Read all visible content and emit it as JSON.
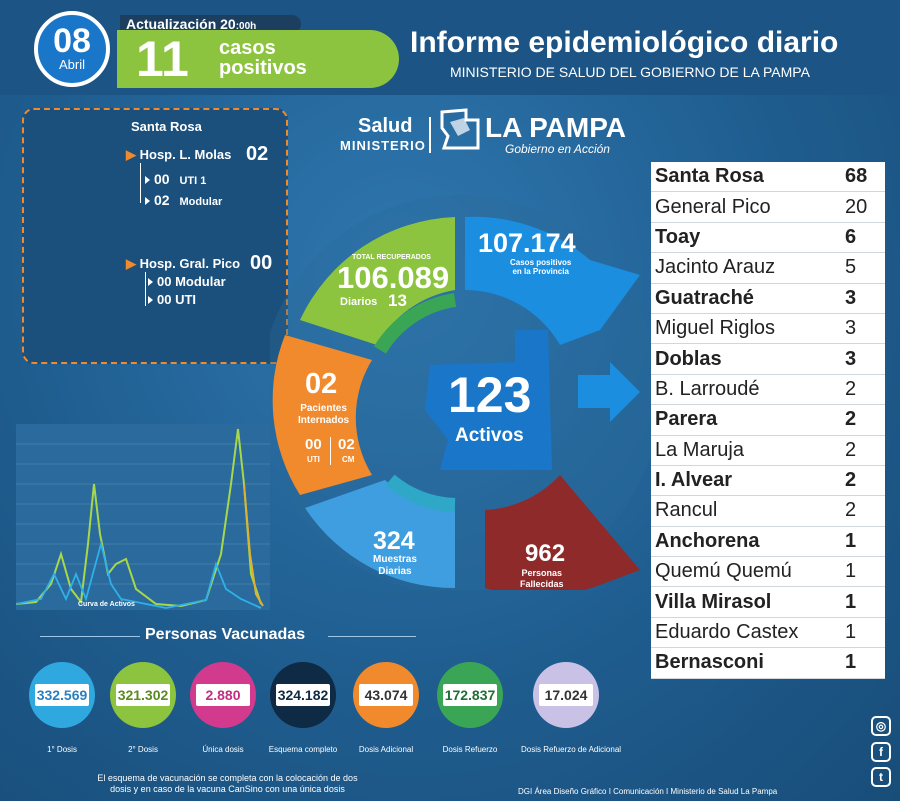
{
  "header": {
    "day": "08",
    "month": "Abril",
    "update_label": "Actualización 20",
    "update_suffix": ":00h",
    "new_cases": "11",
    "new_cases_label_1": "casos",
    "new_cases_label_2": "positivos",
    "title": "Informe epidemiológico diario",
    "subtitle": "MINISTERIO DE SALUD DEL GOBIERNO DE LA PAMPA"
  },
  "hospitals": {
    "city": "Santa Rosa",
    "h1_name": "Hosp. L. Molas",
    "h1_total": "02",
    "h1_uti_val": "00",
    "h1_uti_lbl": "UTI 1",
    "h1_mod_val": "02",
    "h1_mod_lbl": "Modular",
    "h2_name": "Hosp. Gral. Pico",
    "h2_total": "00",
    "h2_mod_val": "00",
    "h2_mod_lbl": "Modular",
    "h2_uti_val": "00",
    "h2_uti_lbl": "UTI"
  },
  "logo": {
    "salud": "Salud",
    "ministerio": "MINISTERIO",
    "la_pampa": "LA PAMPA",
    "gobierno": "Gobierno en Acción"
  },
  "ring": {
    "recovered_label": "TOTAL RECUPERADOS",
    "recovered": "106.089",
    "recovered_daily_label": "Diarios",
    "recovered_daily": "13",
    "positives": "107.174",
    "positives_label_1": "Casos positivos",
    "positives_label_2": "en la Provincia",
    "internados": "02",
    "internados_label_1": "Pacientes",
    "internados_label_2": "Internados",
    "uti_val": "00",
    "uti_lbl": "UTI",
    "cm_val": "02",
    "cm_lbl": "CM",
    "active": "123",
    "active_label": "Activos",
    "samples": "324",
    "samples_label_1": "Muestras",
    "samples_label_2": "Diarias",
    "deaths": "962",
    "deaths_label_1": "Personas",
    "deaths_label_2": "Fallecidas"
  },
  "colors": {
    "green": "#8cc43f",
    "blue": "#1b8ee0",
    "orange": "#f08a2c",
    "lightblue": "#3e9ee0",
    "darkred": "#8e2a2a",
    "teal": "#2fa8c8"
  },
  "localities": [
    {
      "name": "Santa Rosa",
      "count": "68",
      "bold": true
    },
    {
      "name": "General Pico",
      "count": "20",
      "bold": false
    },
    {
      "name": "Toay",
      "count": "6",
      "bold": true
    },
    {
      "name": "Jacinto Arauz",
      "count": "5",
      "bold": false
    },
    {
      "name": "Guatraché",
      "count": "3",
      "bold": true
    },
    {
      "name": "Miguel Riglos",
      "count": "3",
      "bold": false
    },
    {
      "name": "Doblas",
      "count": "3",
      "bold": true
    },
    {
      "name": "B. Larroudé",
      "count": "2",
      "bold": false
    },
    {
      "name": "Parera",
      "count": "2",
      "bold": true
    },
    {
      "name": "La Maruja",
      "count": "2",
      "bold": false
    },
    {
      "name": "I.  Alvear",
      "count": "2",
      "bold": true
    },
    {
      "name": "Rancul",
      "count": "2",
      "bold": false
    },
    {
      "name": "Anchorena",
      "count": "1",
      "bold": true
    },
    {
      "name": "Quemú Quemú",
      "count": "1",
      "bold": false
    },
    {
      "name": "Villa Mirasol",
      "count": "1",
      "bold": true
    },
    {
      "name": "Eduardo Castex",
      "count": "1",
      "bold": false
    },
    {
      "name": "Bernasconi",
      "count": "1",
      "bold": true
    }
  ],
  "chart": {
    "caption": "Curva de Activos"
  },
  "vaccines": {
    "title": "Personas Vacunadas",
    "items": [
      {
        "value": "332.569",
        "label": "1° Dosis",
        "color": "#2fa8e0",
        "text_color": "#2a7fc0"
      },
      {
        "value": "321.302",
        "label": "2° Dosis",
        "color": "#8cc43f",
        "text_color": "#5a8a20"
      },
      {
        "value": "2.880",
        "label": "Única dosis",
        "color": "#d23a8e",
        "text_color": "#c0307e"
      },
      {
        "value": "324.182",
        "label": "Esquema completo",
        "color": "#0e2a44",
        "text_color": "#0e2a44"
      },
      {
        "value": "43.074",
        "label": "Dosis Adicional",
        "color": "#f08a2c",
        "text_color": "#333333"
      },
      {
        "value": "172.837",
        "label": "Dosis Refuerzo",
        "color": "#3aa655",
        "text_color": "#1f6e33"
      },
      {
        "value": "17.024",
        "label": "Dosis Refuerzo de Adicional",
        "color": "#c9c2e6",
        "text_color": "#333333"
      }
    ],
    "note": "El esquema de vacunación se completa con la colocación de dos dosis y en caso de la vacuna CanSino con una única dosis"
  },
  "footer": {
    "credit": "DGI Área Diseño Gráfico  I Comunicación I Ministerio de Salud La Pampa"
  }
}
